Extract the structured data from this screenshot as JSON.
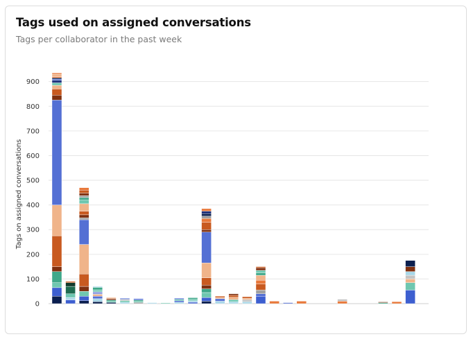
{
  "card": {
    "title": "Tags used on assigned conversations",
    "subtitle": "Tags per collaborator in the past week"
  },
  "chart_data": {
    "type": "bar",
    "stacked": true,
    "ylabel": "Tags on assigned conversations",
    "xlabel": "",
    "ylim": [
      0,
      930
    ],
    "yticks": [
      0,
      100,
      200,
      300,
      400,
      500,
      600,
      700,
      800,
      900
    ],
    "grid": true,
    "bars": [
      {
        "segments": [
          [
            30,
            "#0b1f4f"
          ],
          [
            35,
            "#3d5fd0"
          ],
          [
            20,
            "#6fc7b0"
          ],
          [
            45,
            "#3fa88a"
          ],
          [
            20,
            "#7f3010"
          ],
          [
            125,
            "#c85a20"
          ],
          [
            125,
            "#f0b48a"
          ],
          [
            425,
            "#5470d4"
          ],
          [
            20,
            "#7f3010"
          ],
          [
            25,
            "#c85a20"
          ],
          [
            15,
            "#f0b48a"
          ],
          [
            10,
            "#6fc7b0"
          ],
          [
            10,
            "#1b2f7a"
          ],
          [
            5,
            "#3d5fd0"
          ],
          [
            5,
            "#0b1f4f"
          ],
          [
            5,
            "#e8783a"
          ],
          [
            10,
            "#f0b48a"
          ],
          [
            5,
            "#e8783a"
          ]
        ]
      },
      {
        "segments": [
          [
            15,
            "#3d5fd0"
          ],
          [
            10,
            "#a9d7e8"
          ],
          [
            15,
            "#6fc7b0"
          ],
          [
            30,
            "#1f6b50"
          ],
          [
            15,
            "#123a2c"
          ],
          [
            5,
            "#c85a20"
          ]
        ]
      },
      {
        "segments": [
          [
            12,
            "#0b1f4f"
          ],
          [
            18,
            "#3d5fd0"
          ],
          [
            20,
            "#6fc7b0"
          ],
          [
            20,
            "#7f3010"
          ],
          [
            50,
            "#c85a20"
          ],
          [
            120,
            "#f0b48a"
          ],
          [
            100,
            "#5470d4"
          ],
          [
            8,
            "#a0a0a0"
          ],
          [
            12,
            "#7f3010"
          ],
          [
            15,
            "#c85a20"
          ],
          [
            30,
            "#f0b48a"
          ],
          [
            15,
            "#6fc7b0"
          ],
          [
            10,
            "#3fa88a"
          ],
          [
            8,
            "#a0a0a0"
          ],
          [
            10,
            "#7f3010"
          ],
          [
            12,
            "#c85a20"
          ],
          [
            10,
            "#e8783a"
          ]
        ]
      },
      {
        "segments": [
          [
            8,
            "#0b1f4f"
          ],
          [
            12,
            "#a9d7e8"
          ],
          [
            10,
            "#5470d4"
          ],
          [
            8,
            "#f0b48a"
          ],
          [
            10,
            "#8fa0e0"
          ],
          [
            8,
            "#6fc7b0"
          ],
          [
            10,
            "#3fa88a"
          ],
          [
            4,
            "#a9d7e8"
          ]
        ]
      },
      {
        "segments": [
          [
            5,
            "#0b1f4f"
          ],
          [
            5,
            "#6fc7b0"
          ],
          [
            5,
            "#3fa88a"
          ],
          [
            5,
            "#7f3010"
          ],
          [
            5,
            "#f0b48a"
          ]
        ]
      },
      {
        "segments": [
          [
            6,
            "#a9d7e8"
          ],
          [
            6,
            "#6fc7b0"
          ],
          [
            6,
            "#c4c4c4"
          ],
          [
            4,
            "#5470d4"
          ]
        ]
      },
      {
        "segments": [
          [
            5,
            "#a0a0a0"
          ],
          [
            5,
            "#6fc7b0"
          ],
          [
            5,
            "#3fa88a"
          ],
          [
            5,
            "#5470d4"
          ]
        ]
      },
      {
        "segments": [
          [
            4,
            "#a9d7e8"
          ]
        ]
      },
      {
        "segments": [
          [
            3,
            "#6fc7b0"
          ]
        ]
      },
      {
        "segments": [
          [
            6,
            "#a9d7e8"
          ],
          [
            6,
            "#5470d4"
          ],
          [
            6,
            "#6fc7b0"
          ],
          [
            4,
            "#3d5fd0"
          ]
        ]
      },
      {
        "segments": [
          [
            6,
            "#5470d4"
          ],
          [
            6,
            "#a9d7e8"
          ],
          [
            6,
            "#6fc7b0"
          ],
          [
            6,
            "#3fa88a"
          ]
        ]
      },
      {
        "segments": [
          [
            10,
            "#0b1f4f"
          ],
          [
            15,
            "#3d5fd0"
          ],
          [
            20,
            "#6fc7b0"
          ],
          [
            15,
            "#3fa88a"
          ],
          [
            15,
            "#7f3010"
          ],
          [
            30,
            "#c85a20"
          ],
          [
            60,
            "#f0b48a"
          ],
          [
            125,
            "#5470d4"
          ],
          [
            10,
            "#7f3010"
          ],
          [
            30,
            "#c85a20"
          ],
          [
            15,
            "#e8783a"
          ],
          [
            10,
            "#a0a0a0"
          ],
          [
            10,
            "#0b1f4f"
          ],
          [
            10,
            "#1b2f7a"
          ],
          [
            10,
            "#e8783a"
          ]
        ]
      },
      {
        "segments": [
          [
            10,
            "#a9d7e8"
          ],
          [
            10,
            "#5470d4"
          ],
          [
            5,
            "#f0b48a"
          ],
          [
            5,
            "#c85a20"
          ]
        ]
      },
      {
        "segments": [
          [
            8,
            "#a9d7e8"
          ],
          [
            8,
            "#6fc7b0"
          ],
          [
            10,
            "#f0b48a"
          ],
          [
            8,
            "#c85a20"
          ],
          [
            6,
            "#7f3010"
          ]
        ]
      },
      {
        "segments": [
          [
            8,
            "#a9d7e8"
          ],
          [
            8,
            "#c4c4c4"
          ],
          [
            6,
            "#f0b48a"
          ],
          [
            6,
            "#c85a20"
          ]
        ]
      },
      {
        "segments": [
          [
            30,
            "#3d5fd0"
          ],
          [
            10,
            "#5470d4"
          ],
          [
            15,
            "#a0a0a0"
          ],
          [
            25,
            "#c85a20"
          ],
          [
            15,
            "#e8783a"
          ],
          [
            20,
            "#f0b48a"
          ],
          [
            10,
            "#3fa88a"
          ],
          [
            10,
            "#6fc7b0"
          ],
          [
            10,
            "#7f3010"
          ],
          [
            5,
            "#c85a20"
          ]
        ]
      },
      {
        "segments": [
          [
            10,
            "#e8783a"
          ]
        ]
      },
      {
        "segments": [
          [
            4,
            "#5470d4"
          ]
        ]
      },
      {
        "segments": [
          [
            10,
            "#e8783a"
          ]
        ]
      },
      {
        "segments": []
      },
      {
        "segments": []
      },
      {
        "segments": [
          [
            10,
            "#e8783a"
          ],
          [
            8,
            "#c4c4c4"
          ]
        ]
      },
      {
        "segments": []
      },
      {
        "segments": []
      },
      {
        "segments": [
          [
            4,
            "#3fa88a"
          ],
          [
            3,
            "#7f3010"
          ]
        ]
      },
      {
        "segments": [
          [
            8,
            "#e8783a"
          ]
        ]
      },
      {
        "segments": [
          [
            55,
            "#3d5fd0"
          ],
          [
            30,
            "#6fc7b0"
          ],
          [
            15,
            "#f0b48a"
          ],
          [
            15,
            "#c4c4c4"
          ],
          [
            15,
            "#a9d7e8"
          ],
          [
            20,
            "#7f3010"
          ],
          [
            25,
            "#0b1f4f"
          ]
        ]
      }
    ]
  }
}
